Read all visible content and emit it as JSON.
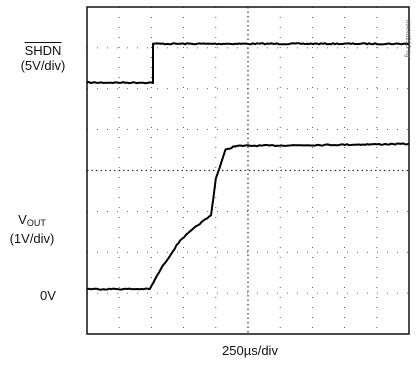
{
  "chart_data": {
    "type": "line",
    "title": "",
    "xlabel": "250µs/div",
    "grid": true,
    "x_divisions": 10,
    "y_divisions": 8,
    "time_per_div_us": 250,
    "series": [
      {
        "label_main": "SHDN",
        "label_overline": true,
        "label_scale": "(5V/div)",
        "x_div": [
          0,
          2.05,
          2.05,
          10
        ],
        "y_div": [
          6.15,
          6.15,
          7.1,
          7.1
        ]
      },
      {
        "label_main": "V",
        "label_sub": "OUT",
        "label_scale": "(1V/div)",
        "zero_label": "0V",
        "x_div": [
          0,
          1.95,
          2.3,
          2.9,
          3.5,
          3.85,
          4.0,
          4.3,
          4.6,
          10
        ],
        "y_div": [
          1.1,
          1.1,
          1.6,
          2.3,
          2.7,
          2.9,
          3.8,
          4.5,
          4.6,
          4.65
        ]
      }
    ]
  },
  "side_id": "MAX6225 fig"
}
